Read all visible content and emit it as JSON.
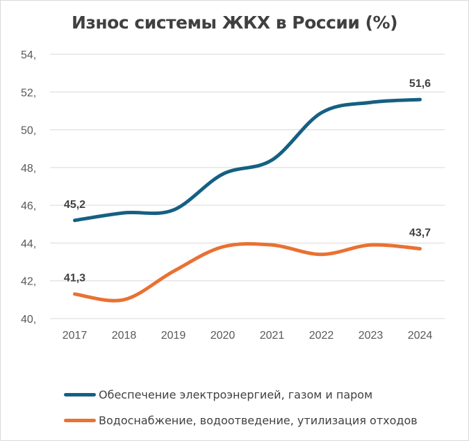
{
  "chart_data": {
    "type": "line",
    "title": "Износ системы ЖКХ в России (%)",
    "categories": [
      "2017",
      "2018",
      "2019",
      "2020",
      "2021",
      "2022",
      "2023",
      "2024"
    ],
    "ylim": [
      40,
      54
    ],
    "yticks": [
      40,
      42,
      44,
      46,
      48,
      50,
      52,
      54
    ],
    "ytick_labels": [
      "40,",
      "42,",
      "44,",
      "46,",
      "48,",
      "50,",
      "52,",
      "54,"
    ],
    "grid": true,
    "smooth": true,
    "legend_position": "bottom",
    "series": [
      {
        "name": "Обеспечение электроэнергией, газом и паром",
        "color": "#156082",
        "values": [
          45.2,
          45.6,
          45.75,
          47.65,
          48.4,
          50.9,
          51.45,
          51.6
        ],
        "data_labels": {
          "0": "45,2",
          "7": "51,6"
        }
      },
      {
        "name": "Водоснабжение, водоотведение, утилизация отходов",
        "color": "#E97132",
        "values": [
          41.3,
          41.0,
          42.5,
          43.8,
          43.9,
          43.4,
          43.9,
          43.7
        ],
        "data_labels": {
          "0": "41,3",
          "7": "43,7"
        }
      }
    ]
  }
}
